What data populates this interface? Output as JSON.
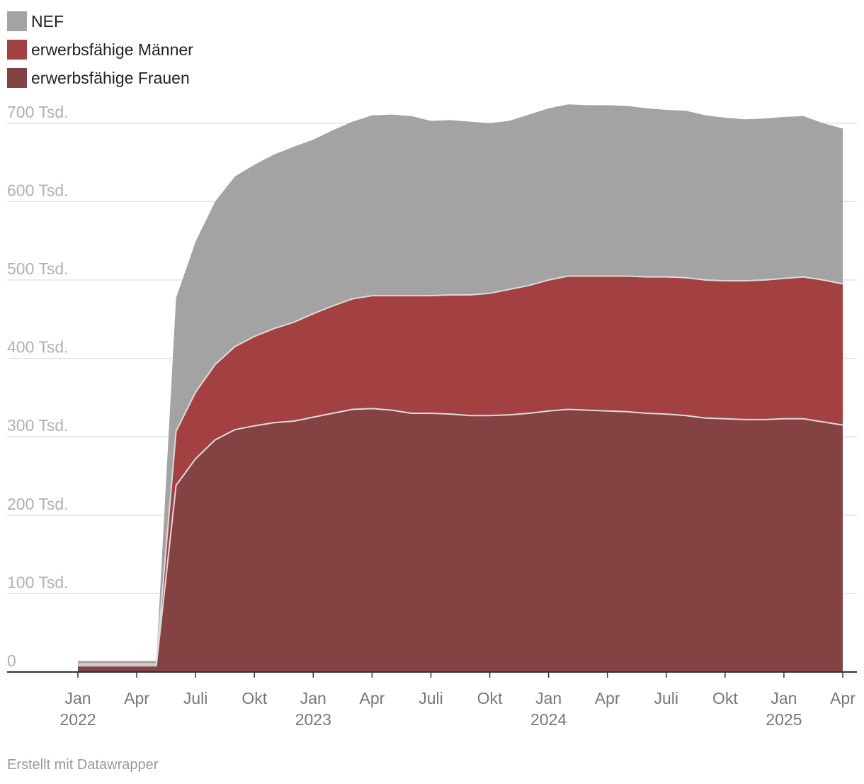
{
  "chart_data": {
    "type": "area",
    "stacked": true,
    "x": [
      2022.0,
      2022.083,
      2022.167,
      2022.25,
      2022.333,
      2022.417,
      2022.5,
      2022.583,
      2022.667,
      2022.75,
      2022.833,
      2022.917,
      2023.0,
      2023.083,
      2023.167,
      2023.25,
      2023.333,
      2023.417,
      2023.5,
      2023.583,
      2023.667,
      2023.75,
      2023.833,
      2023.917,
      2024.0,
      2024.083,
      2024.167,
      2024.25,
      2024.333,
      2024.417,
      2024.5,
      2024.583,
      2024.667,
      2024.75,
      2024.833,
      2024.917,
      2025.0,
      2025.083,
      2025.167,
      2025.25
    ],
    "series": [
      {
        "name": "erwerbsfähige Frauen",
        "color": "#844242",
        "values": [
          8,
          8,
          8,
          8,
          8,
          238,
          272,
          296,
          309,
          314,
          318,
          320,
          325,
          330,
          335,
          336,
          334,
          330,
          330,
          329,
          327,
          327,
          328,
          330,
          333,
          335,
          334,
          333,
          332,
          330,
          329,
          327,
          324,
          323,
          322,
          322,
          323,
          323,
          319,
          315
        ]
      },
      {
        "name": "erwerbsfähige Männer",
        "color": "#a34041",
        "values": [
          2,
          2,
          2,
          2,
          2,
          69,
          85,
          96,
          106,
          114,
          120,
          126,
          132,
          137,
          141,
          144,
          146,
          150,
          150,
          152,
          154,
          156,
          160,
          163,
          167,
          170,
          171,
          172,
          173,
          174,
          175,
          176,
          176,
          176,
          177,
          178,
          179,
          181,
          181,
          180
        ]
      },
      {
        "name": "NEF",
        "color": "#a3a3a3",
        "values": [
          4,
          4,
          4,
          4,
          4,
          170,
          192,
          208,
          217,
          219,
          222,
          224,
          222,
          224,
          226,
          230,
          231,
          229,
          223,
          223,
          221,
          217,
          215,
          218,
          219,
          219,
          218,
          218,
          217,
          215,
          213,
          213,
          210,
          208,
          206,
          206,
          206,
          205,
          200,
          198
        ]
      }
    ],
    "legend_order": [
      "NEF",
      "erwerbsfähige Männer",
      "erwerbsfähige Frauen"
    ],
    "ylim": [
      0,
      730
    ],
    "yticks": [
      {
        "value": 0,
        "label": "0"
      },
      {
        "value": 100,
        "label": "100 Tsd."
      },
      {
        "value": 200,
        "label": "200 Tsd."
      },
      {
        "value": 300,
        "label": "300 Tsd."
      },
      {
        "value": 400,
        "label": "400 Tsd."
      },
      {
        "value": 500,
        "label": "500 Tsd."
      },
      {
        "value": 600,
        "label": "600 Tsd."
      },
      {
        "value": 700,
        "label": "700 Tsd."
      }
    ],
    "xticks": [
      {
        "value": 2022.0,
        "label": "Jan",
        "year": "2022"
      },
      {
        "value": 2022.25,
        "label": "Apr"
      },
      {
        "value": 2022.5,
        "label": "Juli"
      },
      {
        "value": 2022.75,
        "label": "Okt"
      },
      {
        "value": 2023.0,
        "label": "Jan",
        "year": "2023"
      },
      {
        "value": 2023.25,
        "label": "Apr"
      },
      {
        "value": 2023.5,
        "label": "Juli"
      },
      {
        "value": 2023.75,
        "label": "Okt"
      },
      {
        "value": 2024.0,
        "label": "Jan",
        "year": "2024"
      },
      {
        "value": 2024.25,
        "label": "Apr"
      },
      {
        "value": 2024.5,
        "label": "Juli"
      },
      {
        "value": 2024.75,
        "label": "Okt"
      },
      {
        "value": 2025.0,
        "label": "Jan",
        "year": "2025"
      },
      {
        "value": 2025.25,
        "label": "Apr"
      }
    ],
    "xlim": [
      2022.0,
      2025.25
    ]
  },
  "footer": {
    "credit": "Erstellt mit Datawrapper"
  }
}
